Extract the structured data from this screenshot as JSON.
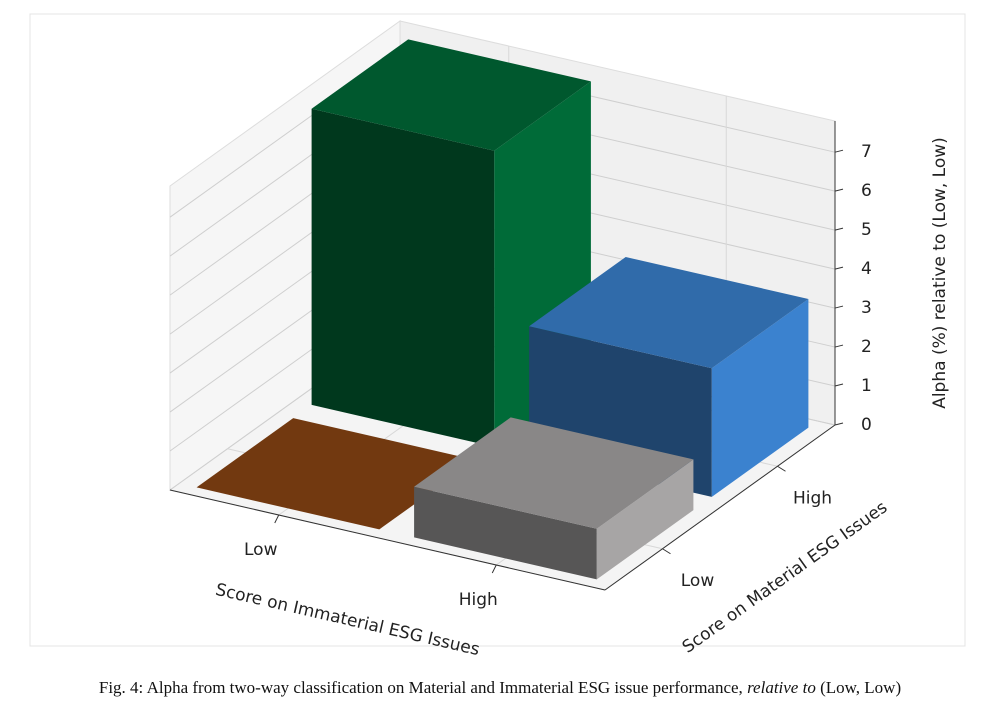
{
  "chart_data": {
    "type": "bar3d",
    "x_label": "Score on Immaterial ESG Issues",
    "y_label": "Score on Material ESG Issues",
    "z_label": "Alpha (%) relative to (Low, Low)",
    "x_categories": [
      "Low",
      "High"
    ],
    "y_categories": [
      "Low",
      "High"
    ],
    "values": [
      [
        0,
        1.3
      ],
      [
        7.6,
        3.3
      ]
    ],
    "colors": [
      [
        "#8b4513",
        "#a7a5a5"
      ],
      [
        "#006b38",
        "#3b82cf"
      ]
    ],
    "zlim": [
      0,
      7.8
    ],
    "zticks": [
      0,
      1,
      2,
      3,
      4,
      5,
      6,
      7
    ],
    "grid": true
  },
  "caption": [
    "Fig. 4: Alpha from two-way classification on Material and Immaterial ESG issue performance, ",
    "relative to",
    " (Low, Low)"
  ]
}
